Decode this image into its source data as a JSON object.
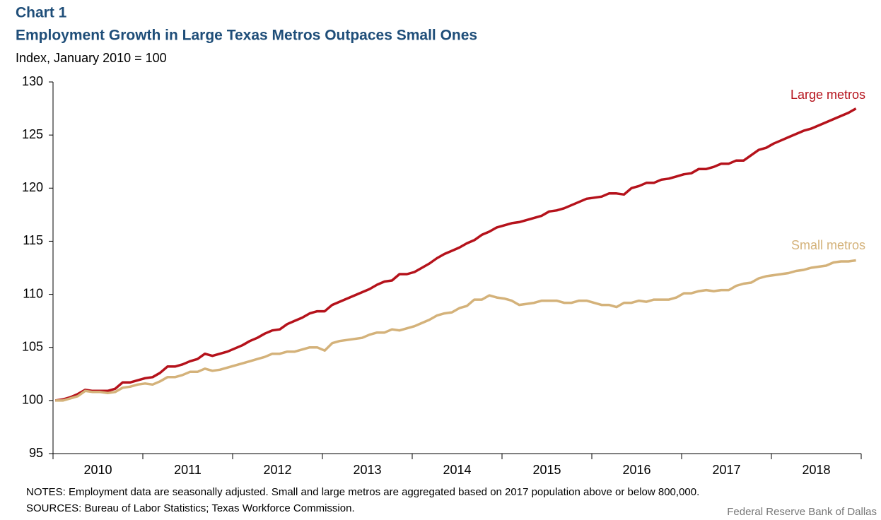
{
  "chart_data": {
    "type": "line",
    "label": "Chart 1",
    "title": "Employment Growth in Large Texas Metros Outpaces Small Ones",
    "subtitle": "Index, January 2010 = 100",
    "categories": [
      "2010",
      null,
      null,
      null,
      null,
      null,
      null,
      null,
      null,
      null,
      null,
      null,
      "2011",
      null,
      null,
      null,
      null,
      null,
      null,
      null,
      null,
      null,
      null,
      null,
      "2012",
      null,
      null,
      null,
      null,
      null,
      null,
      null,
      null,
      null,
      null,
      null,
      "2013",
      null,
      null,
      null,
      null,
      null,
      null,
      null,
      null,
      null,
      null,
      null,
      "2014",
      null,
      null,
      null,
      null,
      null,
      null,
      null,
      null,
      null,
      null,
      null,
      "2015",
      null,
      null,
      null,
      null,
      null,
      null,
      null,
      null,
      null,
      null,
      null,
      "2016",
      null,
      null,
      null,
      null,
      null,
      null,
      null,
      null,
      null,
      null,
      null,
      "2017",
      null,
      null,
      null,
      null,
      null,
      null,
      null,
      null,
      null,
      null,
      null,
      "2018",
      null,
      null,
      null,
      null,
      null,
      null,
      null,
      null,
      null,
      null,
      null
    ],
    "series": [
      {
        "name": "Large metros",
        "color": "#b5121b",
        "values": [
          100.0,
          100.1,
          100.3,
          100.6,
          101.0,
          100.9,
          100.9,
          100.9,
          101.1,
          101.7,
          101.7,
          101.9,
          102.1,
          102.2,
          102.6,
          103.2,
          103.2,
          103.4,
          103.7,
          103.9,
          104.4,
          104.2,
          104.4,
          104.6,
          104.9,
          105.2,
          105.6,
          105.9,
          106.3,
          106.6,
          106.7,
          107.2,
          107.5,
          107.8,
          108.2,
          108.4,
          108.4,
          109.0,
          109.3,
          109.6,
          109.9,
          110.2,
          110.5,
          110.9,
          111.2,
          111.3,
          111.9,
          111.9,
          112.1,
          112.5,
          112.9,
          113.4,
          113.8,
          114.1,
          114.4,
          114.8,
          115.1,
          115.6,
          115.9,
          116.3,
          116.5,
          116.7,
          116.8,
          117.0,
          117.2,
          117.4,
          117.8,
          117.9,
          118.1,
          118.4,
          118.7,
          119.0,
          119.1,
          119.2,
          119.5,
          119.5,
          119.4,
          120.0,
          120.2,
          120.5,
          120.5,
          120.8,
          120.9,
          121.1,
          121.3,
          121.4,
          121.8,
          121.8,
          122.0,
          122.3,
          122.3,
          122.6,
          122.6,
          123.1,
          123.6,
          123.8,
          124.2,
          124.5,
          124.8,
          125.1,
          125.4,
          125.6,
          125.9,
          126.2,
          126.5,
          126.8,
          127.1,
          127.5
        ]
      },
      {
        "name": "Small metros",
        "color": "#d4b27a",
        "values": [
          100.0,
          100.0,
          100.2,
          100.4,
          100.9,
          100.8,
          100.8,
          100.7,
          100.8,
          101.2,
          101.3,
          101.5,
          101.6,
          101.5,
          101.8,
          102.2,
          102.2,
          102.4,
          102.7,
          102.7,
          103.0,
          102.8,
          102.9,
          103.1,
          103.3,
          103.5,
          103.7,
          103.9,
          104.1,
          104.4,
          104.4,
          104.6,
          104.6,
          104.8,
          105.0,
          105.0,
          104.7,
          105.4,
          105.6,
          105.7,
          105.8,
          105.9,
          106.2,
          106.4,
          106.4,
          106.7,
          106.6,
          106.8,
          107.0,
          107.3,
          107.6,
          108.0,
          108.2,
          108.3,
          108.7,
          108.9,
          109.5,
          109.5,
          109.9,
          109.7,
          109.6,
          109.4,
          109.0,
          109.1,
          109.2,
          109.4,
          109.4,
          109.4,
          109.2,
          109.2,
          109.4,
          109.4,
          109.2,
          109.0,
          109.0,
          108.8,
          109.2,
          109.2,
          109.4,
          109.3,
          109.5,
          109.5,
          109.5,
          109.7,
          110.1,
          110.1,
          110.3,
          110.4,
          110.3,
          110.4,
          110.4,
          110.8,
          111.0,
          111.1,
          111.5,
          111.7,
          111.8,
          111.9,
          112.0,
          112.2,
          112.3,
          112.5,
          112.6,
          112.7,
          113.0,
          113.1,
          113.1,
          113.2
        ]
      }
    ],
    "ylim": [
      95,
      130
    ],
    "yticks": [
      95,
      100,
      105,
      110,
      115,
      120,
      125,
      130
    ],
    "grid": false,
    "notes": "NOTES: Employment data are seasonally adjusted. Small and large metros are aggregated based on 2017 population above or below 800,000.",
    "sources": "SOURCES: Bureau of Labor Statistics; Texas Workforce Commission.",
    "credit": "Federal Reserve Bank of Dallas"
  }
}
